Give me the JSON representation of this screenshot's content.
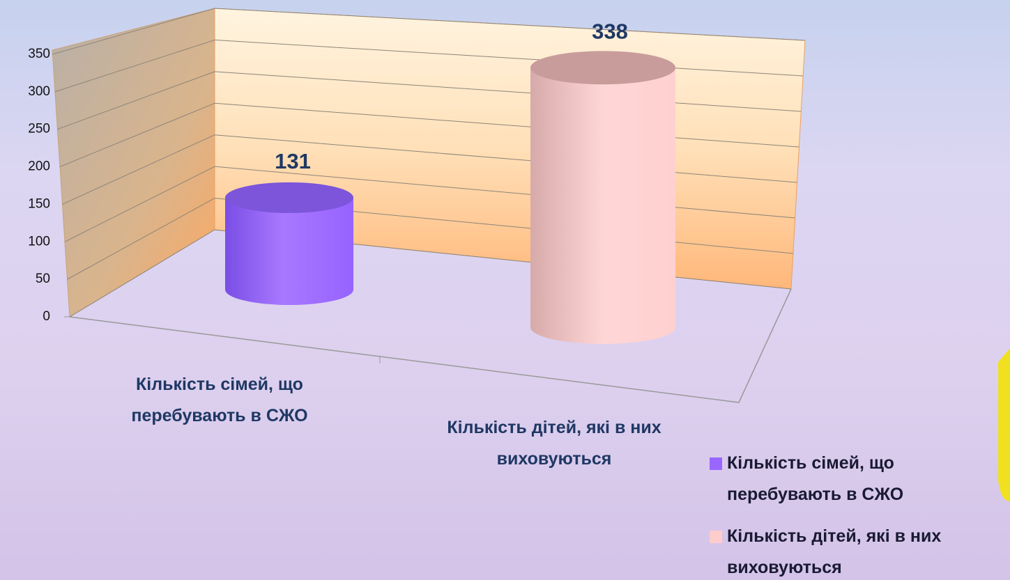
{
  "chart_data": {
    "type": "bar3d-cylinder",
    "categories": [
      "Кількість сімей, що перебувають в СЖО",
      "Кількість дітей, які в них виховуються"
    ],
    "values": [
      131,
      338
    ],
    "colors": [
      "#9966ff",
      "#ffcccc"
    ],
    "ylim": [
      0,
      350
    ],
    "yticks": [
      0,
      50,
      100,
      150,
      200,
      250,
      300,
      350
    ],
    "grid": true,
    "legend": "bottom-right"
  }
}
